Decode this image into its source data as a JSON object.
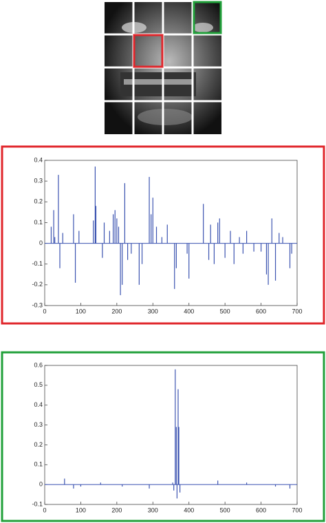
{
  "chart_data": [
    {
      "type": "stem",
      "color": "#3a52b0",
      "x": [
        18,
        25,
        28,
        38,
        42,
        50,
        80,
        85,
        95,
        135,
        140,
        142,
        160,
        165,
        180,
        190,
        195,
        200,
        205,
        210,
        215,
        222,
        230,
        240,
        262,
        270,
        290,
        295,
        300,
        310,
        325,
        340,
        360,
        365,
        395,
        400,
        440,
        455,
        460,
        470,
        480,
        485,
        500,
        515,
        525,
        540,
        550,
        560,
        580,
        600,
        615,
        620,
        630,
        640,
        650,
        660,
        680,
        685
      ],
      "values": [
        0.08,
        0.16,
        0.03,
        0.33,
        -0.12,
        0.05,
        0.14,
        -0.19,
        0.06,
        0.11,
        0.37,
        0.18,
        -0.07,
        0.1,
        0.06,
        0.14,
        0.16,
        0.12,
        0.08,
        -0.25,
        -0.2,
        0.29,
        -0.08,
        -0.05,
        -0.2,
        -0.1,
        0.32,
        0.14,
        0.22,
        0.08,
        0.03,
        0.09,
        -0.22,
        -0.12,
        -0.05,
        -0.17,
        0.19,
        -0.08,
        0.09,
        -0.1,
        0.1,
        0.12,
        -0.07,
        0.06,
        -0.1,
        0.03,
        -0.05,
        0.06,
        -0.04,
        -0.04,
        -0.15,
        -0.2,
        0.12,
        -0.18,
        0.05,
        0.03,
        -0.12,
        -0.05
      ],
      "xlim": [
        0,
        700
      ],
      "xticks": [
        0,
        100,
        200,
        300,
        400,
        500,
        600,
        700
      ],
      "ylim": [
        -0.3,
        0.4
      ],
      "yticks": [
        -0.3,
        -0.2,
        -0.1,
        0,
        0.1,
        0.2,
        0.3,
        0.4
      ]
    },
    {
      "type": "stem",
      "color": "#3a52b0",
      "x": [
        55,
        80,
        100,
        155,
        215,
        290,
        355,
        358,
        362,
        365,
        367,
        370,
        372,
        375,
        480,
        560,
        640,
        680
      ],
      "values": [
        0.03,
        -0.02,
        -0.01,
        0.01,
        -0.01,
        -0.02,
        0.01,
        -0.03,
        0.58,
        0.29,
        -0.07,
        0.48,
        0.29,
        -0.04,
        0.02,
        0.01,
        -0.01,
        -0.02
      ],
      "xlim": [
        0,
        700
      ],
      "xticks": [
        0,
        100,
        200,
        300,
        400,
        500,
        600,
        700
      ],
      "ylim": [
        -0.1,
        0.6
      ],
      "yticks": [
        -0.1,
        0,
        0.1,
        0.2,
        0.3,
        0.4,
        0.5,
        0.6
      ]
    }
  ]
}
